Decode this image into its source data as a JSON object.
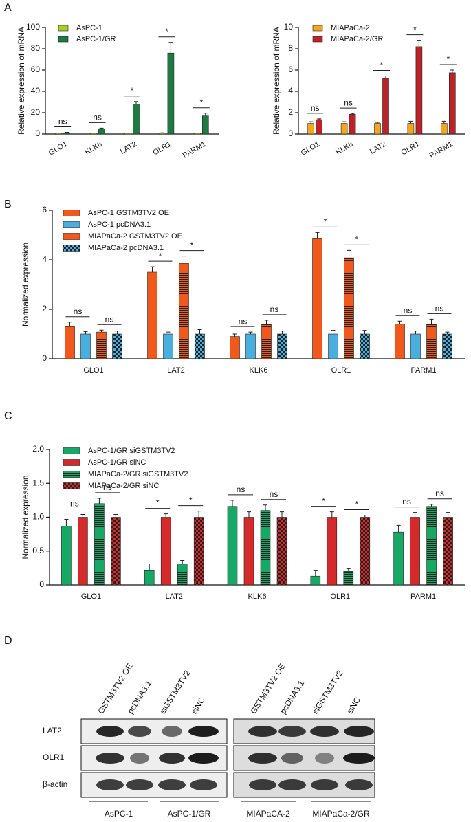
{
  "panels": [
    "A",
    "B",
    "C",
    "D"
  ],
  "chart_data": [
    {
      "type": "bar",
      "ylabel": "Relative expression of mRNA",
      "categories": [
        "GLO1",
        "KLK6",
        "LAT2",
        "OLR1",
        "PARM1"
      ],
      "series": [
        {
          "name": "AsPC-1",
          "color": "#a2cf2a",
          "values": [
            0.8,
            0.8,
            0.8,
            0.8,
            0.8
          ],
          "errors": [
            0.2,
            0.2,
            0.2,
            0.3,
            0.2
          ]
        },
        {
          "name": "AsPC-1/GR",
          "color": "#1d7a40",
          "values": [
            1.2,
            5,
            28,
            76,
            17
          ],
          "errors": [
            0.4,
            0.6,
            2.5,
            10,
            2.5
          ]
        }
      ],
      "ylim": [
        0,
        100
      ],
      "yticks": [
        0,
        20,
        40,
        60,
        80,
        100
      ],
      "legend": "upper left",
      "annotations": [
        [
          "ns"
        ],
        [
          "ns"
        ],
        [
          "*"
        ],
        [
          "*"
        ],
        [
          "*"
        ]
      ]
    },
    {
      "type": "bar",
      "ylabel": "Relative expression of mRNA",
      "categories": [
        "GLO1",
        "KLK6",
        "LAT2",
        "OLR1",
        "PARM1"
      ],
      "series": [
        {
          "name": "MIAPaCa-2",
          "color": "#f2a71e",
          "values": [
            1,
            1,
            1,
            1,
            1
          ],
          "errors": [
            0.15,
            0.15,
            0.1,
            0.2,
            0.2
          ]
        },
        {
          "name": "MIAPaCa-2/GR",
          "color": "#be2128",
          "values": [
            1.35,
            1.85,
            5.2,
            8.2,
            5.75
          ],
          "errors": [
            0.08,
            0.08,
            0.25,
            0.6,
            0.25
          ]
        }
      ],
      "ylim": [
        0,
        10
      ],
      "yticks": [
        0,
        2,
        4,
        6,
        8,
        10
      ],
      "legend": "upper left",
      "annotations": [
        [
          "ns"
        ],
        [
          "ns"
        ],
        [
          "*"
        ],
        [
          "*"
        ],
        [
          "*"
        ]
      ]
    },
    {
      "type": "bar",
      "ylabel": "Normalized expression",
      "categories": [
        "GLO1",
        "LAT2",
        "KLK6",
        "OLR1",
        "PARM1"
      ],
      "series": [
        {
          "name": "AsPC-1 GSTM3TV2 OE",
          "color": "#f0581c",
          "values": [
            1.3,
            3.5,
            0.9,
            4.85,
            1.4
          ],
          "errors": [
            0.18,
            0.22,
            0.1,
            0.25,
            0.12
          ]
        },
        {
          "name": "AsPC-1 pcDNA3.1",
          "color": "#4aaede",
          "values": [
            1,
            1,
            1,
            1,
            1
          ],
          "errors": [
            0.1,
            0.08,
            0.08,
            0.15,
            0.12
          ]
        },
        {
          "name": "MIAPaCa-2 GSTM3TV2 OE",
          "color": "#f0581c",
          "pattern": "lines",
          "values": [
            1.08,
            3.85,
            1.38,
            4.08,
            1.38
          ],
          "errors": [
            0.08,
            0.3,
            0.18,
            0.3,
            0.22
          ]
        },
        {
          "name": "MIAPaCa-2 pcDNA3.1",
          "color": "#4aaede",
          "pattern": "cross",
          "values": [
            1,
            1,
            1,
            1,
            1
          ],
          "errors": [
            0.12,
            0.18,
            0.12,
            0.15,
            0.08
          ]
        }
      ],
      "ylim": [
        0,
        6
      ],
      "yticks": [
        0,
        2,
        4,
        6
      ],
      "legend": "upper left",
      "annotations": [
        [
          "ns",
          "ns"
        ],
        [
          "*",
          "*"
        ],
        [
          "ns",
          "ns"
        ],
        [
          "*",
          "*"
        ],
        [
          "ns",
          "ns"
        ]
      ]
    },
    {
      "type": "bar",
      "ylabel": "Normalized expression",
      "categories": [
        "GLO1",
        "LAT2",
        "KLK6",
        "OLR1",
        "PARM1"
      ],
      "series": [
        {
          "name": "AsPC-1/GR siGSTM3TV2",
          "color": "#17a865",
          "values": [
            0.87,
            0.21,
            1.16,
            0.13,
            0.78
          ],
          "errors": [
            0.1,
            0.1,
            0.09,
            0.08,
            0.1
          ]
        },
        {
          "name": "AsPC-1/GR siNC",
          "color": "#d42a2c",
          "values": [
            1,
            1,
            1,
            1,
            1
          ],
          "errors": [
            0.04,
            0.05,
            0.08,
            0.08,
            0.07
          ]
        },
        {
          "name": "MIAPaCa-2/GR siGSTM3TV2",
          "color": "#17a865",
          "pattern": "lines",
          "values": [
            1.2,
            0.31,
            1.1,
            0.2,
            1.16
          ],
          "errors": [
            0.08,
            0.05,
            0.08,
            0.04,
            0.03
          ]
        },
        {
          "name": "MIAPaCa-2/GR siNC",
          "color": "#d42a2c",
          "pattern": "cross",
          "values": [
            1,
            1,
            1,
            1,
            1
          ],
          "errors": [
            0.04,
            0.09,
            0.08,
            0.03,
            0.07
          ]
        }
      ],
      "ylim": [
        0,
        2
      ],
      "yticks": [
        0,
        0.5,
        {
          "value": 1,
          "label": "1.0"
        },
        1.5,
        {
          "value": 2,
          "label": "2.0"
        }
      ],
      "legend": "upper left",
      "annotations": [
        [
          "ns",
          "ns"
        ],
        [
          "*",
          "*"
        ],
        [
          "ns",
          "ns"
        ],
        [
          "*",
          "*"
        ],
        [
          "ns",
          "ns"
        ]
      ]
    }
  ],
  "blot": {
    "lanes": [
      "GSTM3TV2 OE",
      "pcDNA3.1",
      "siGSTM3TV2",
      "siNC",
      "GSTM3TV2 OE",
      "pcDNA3.1",
      "siGSTM3TV2",
      "siNC"
    ],
    "rows": [
      "LAT2",
      "OLR1",
      "β-actin"
    ],
    "groups": [
      "AsPC-1",
      "AsPC-1/GR",
      "MIAPaCA-2",
      "MIAPaCa-2/GR"
    ]
  }
}
